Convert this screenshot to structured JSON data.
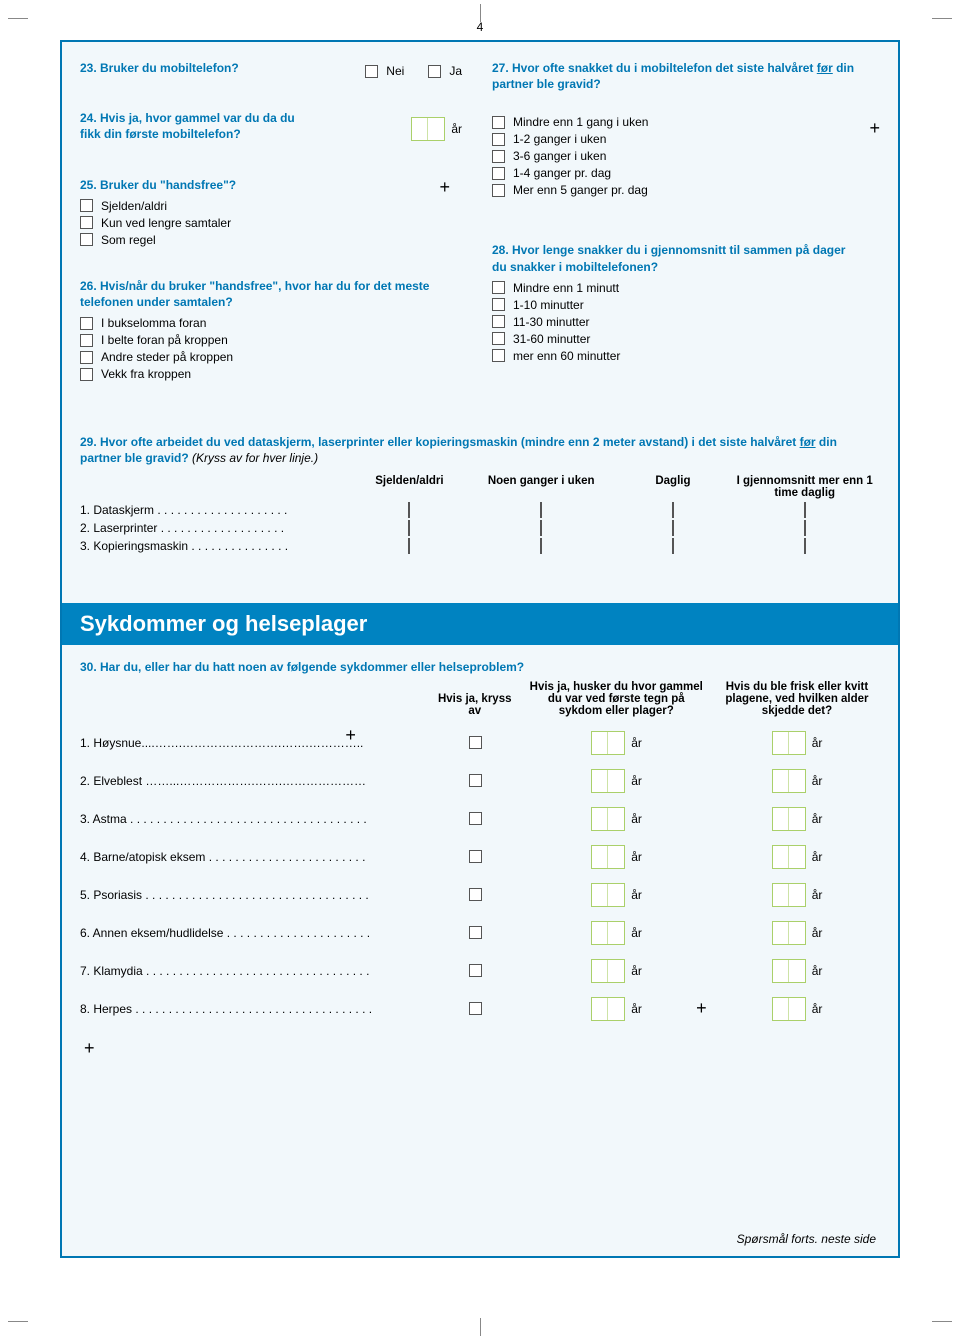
{
  "page_number": "4",
  "colors": {
    "frame_border": "#0077b3",
    "frame_bg": "#f2f8fb",
    "accent_text": "#0077b3",
    "banner_bg": "#0083c1",
    "banner_text": "#ffffff",
    "input_border": "#aad06a"
  },
  "q23": {
    "title": "23. Bruker du mobiltelefon?",
    "opt_no": "Nei",
    "opt_yes": "Ja"
  },
  "q24": {
    "title": "24. Hvis ja, hvor gammel var du da du fikk din første mobiltelefon?",
    "unit": "år"
  },
  "q25": {
    "title": "25. Bruker du \"handsfree\"?",
    "opts": [
      "Sjelden/aldri",
      "Kun ved lengre samtaler",
      "Som regel"
    ]
  },
  "q26": {
    "title": "26. Hvis/når du bruker \"handsfree\", hvor har du for det meste telefonen under samtalen?",
    "opts": [
      "I bukselomma foran",
      "I belte foran på kroppen",
      "Andre steder på kroppen",
      "Vekk fra kroppen"
    ]
  },
  "q27": {
    "title_a": "27. Hvor ofte snakket du i mobiltelefon det siste halvåret",
    "title_b": "før",
    "title_c": " din partner ble gravid?",
    "opts": [
      "Mindre enn 1 gang i uken",
      "1-2 ganger i uken",
      "3-6 ganger i uken",
      "1-4 ganger pr. dag",
      "Mer enn 5 ganger pr. dag"
    ]
  },
  "q28": {
    "title": "28. Hvor lenge snakker du i gjennomsnitt til sammen på dager du snakker i mobiltelefonen?",
    "opts": [
      "Mindre enn 1 minutt",
      "1-10 minutter",
      "11-30 minutter",
      "31-60 minutter",
      "mer enn 60 minutter"
    ]
  },
  "q29": {
    "title_a": "29. Hvor ofte arbeidet du ved dataskjerm, laserprinter eller kopieringsmaskin (mindre enn 2 meter avstand) i det siste halvåret ",
    "title_b": "før",
    "title_c": " din partner ble gravid?",
    "inst": "(Kryss av for hver linje.)",
    "headers": [
      "Sjelden/aldri",
      "Noen ganger i uken",
      "Daglig",
      "I gjennomsnitt mer enn 1 time daglig"
    ],
    "rows": [
      "1.  Dataskjerm . . . . . . . . . . . . . . . . . . . .",
      "2.  Laserprinter  . . . . . . . . . . . . . . . . . . .",
      "3.  Kopieringsmaskin . . . . . . . . . . . . . . ."
    ]
  },
  "section_banner": "Sykdommer og helseplager",
  "q30": {
    "title": "30. Har du, eller har du hatt noen av følgende sykdommer eller helseproblem?",
    "h1": "Hvis ja, kryss av",
    "h2": "Hvis ja, husker du hvor gammel du var ved første tegn på sykdom eller plager?",
    "h3": "Hvis du ble frisk eller kvitt plagene, ved hvilken alder skjedde det?",
    "unit": "år",
    "rows": [
      "1. Høysnue....…….…………………….…….…………..",
      "2. Elveblest ……...……………….…….…………………",
      "3. Astma  . . . . . . . . . . . . . . . . . . . . . . . . . . . . . . . . . . . .",
      "4. Barne/atopisk eksem  . . . . . . . . . . . . . . . . . . . . . . . .",
      "5. Psoriasis . . . . . . . . . . . . . . . . . . . . . . . . . . . . . . . . . .",
      "6. Annen eksem/hudlidelse . . . . . . . . . . . . . . . . . . . . . .",
      "7. Klamydia . . . . . . . . . . . . . . . . . . . . . . . . . . . . . . . . . .",
      "8. Herpes . . . . . . . . . . . . . . . . . . . . . . . . . . . . . . . . . . . ."
    ]
  },
  "footer": "Spørsmål forts. neste side"
}
